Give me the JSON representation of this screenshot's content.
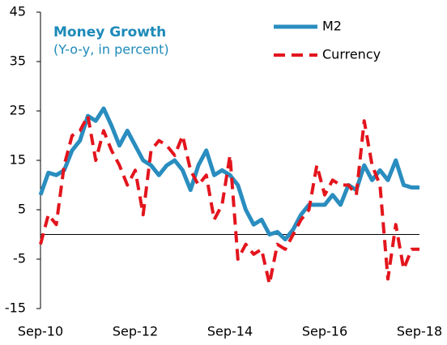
{
  "chart_data": {
    "type": "line",
    "title": "Money Growth",
    "subtitle": "(Y-o-y, in percent)",
    "categories": [
      "Sep-10",
      null,
      null,
      null,
      null,
      null,
      null,
      null,
      null,
      null,
      null,
      null,
      "Sep-12",
      null,
      null,
      null,
      null,
      null,
      null,
      null,
      null,
      null,
      null,
      null,
      "Sep-14",
      null,
      null,
      null,
      null,
      null,
      null,
      null,
      null,
      null,
      null,
      null,
      "Sep-16",
      null,
      null,
      null,
      null,
      null,
      null,
      null,
      null,
      null,
      null,
      null,
      "Sep-18"
    ],
    "series": [
      {
        "name": "M2",
        "color": "#2a8dbf",
        "dash": false,
        "values": [
          8,
          12.5,
          12,
          13,
          17,
          19,
          24,
          23,
          25.5,
          22,
          18,
          21,
          18,
          15,
          14,
          12,
          14,
          15,
          13,
          9,
          14,
          17,
          12,
          13,
          12,
          10,
          5,
          2,
          3,
          0,
          0.5,
          -1,
          1,
          4,
          6,
          6,
          6,
          8,
          6,
          10,
          9,
          14,
          11,
          13,
          11,
          15,
          10,
          9.5,
          9.5
        ]
      },
      {
        "name": "Currency",
        "color": "#e3151d",
        "dash": true,
        "values": [
          -2,
          4,
          2,
          14,
          20,
          21,
          24,
          15,
          21,
          17,
          14,
          10,
          13,
          4,
          17,
          19,
          18,
          16,
          20,
          13,
          10,
          12,
          3,
          6,
          16,
          -5,
          -2,
          -4,
          -3,
          -10,
          -2,
          -3,
          0,
          3,
          5,
          14,
          8,
          11,
          10,
          10,
          8,
          23,
          14,
          10,
          -9,
          2,
          -7,
          -3,
          -3
        ]
      }
    ],
    "ylim": [
      -15,
      45
    ],
    "yticks": [
      -15,
      -5,
      5,
      15,
      25,
      35,
      45
    ],
    "legend": "top-right"
  }
}
